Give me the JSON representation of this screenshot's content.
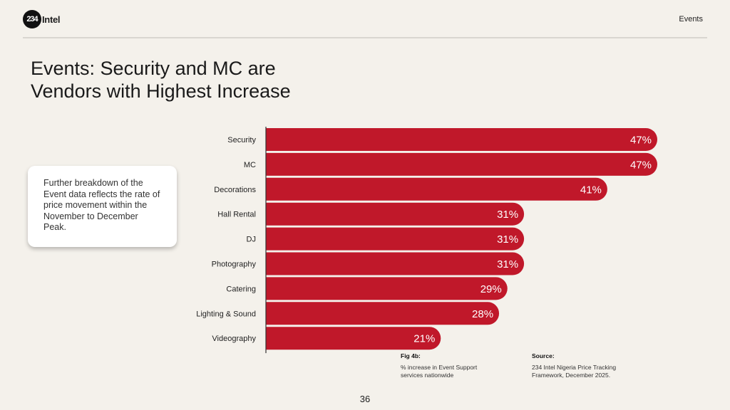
{
  "header": {
    "logo_mark": "234",
    "logo_text": "Intel",
    "section": "Events"
  },
  "title": "Events: Security and MC are Vendors with Highest Increase",
  "callout": "Further breakdown of the Event data reflects the rate of price movement within the November to December Peak.",
  "chart_data": {
    "type": "bar",
    "orientation": "horizontal",
    "categories": [
      "Security",
      "MC",
      "Decorations",
      "Hall Rental",
      "DJ",
      "Photography",
      "Catering",
      "Lighting & Sound",
      "Videography"
    ],
    "values": [
      47,
      47,
      41,
      31,
      31,
      31,
      29,
      28,
      21
    ],
    "value_labels": [
      "47%",
      "47%",
      "41%",
      "31%",
      "31%",
      "31%",
      "29%",
      "28%",
      "21%"
    ],
    "unit": "%",
    "xlim": [
      0,
      47
    ],
    "color": "#c0182a"
  },
  "caption": {
    "fig_label": "Fig 4b:",
    "fig_text": "% increase in Event Support services nationwide",
    "source_label": "Source:",
    "source_text": "234 Intel Nigeria Price Tracking Framework, December 2025."
  },
  "page_number": "36"
}
